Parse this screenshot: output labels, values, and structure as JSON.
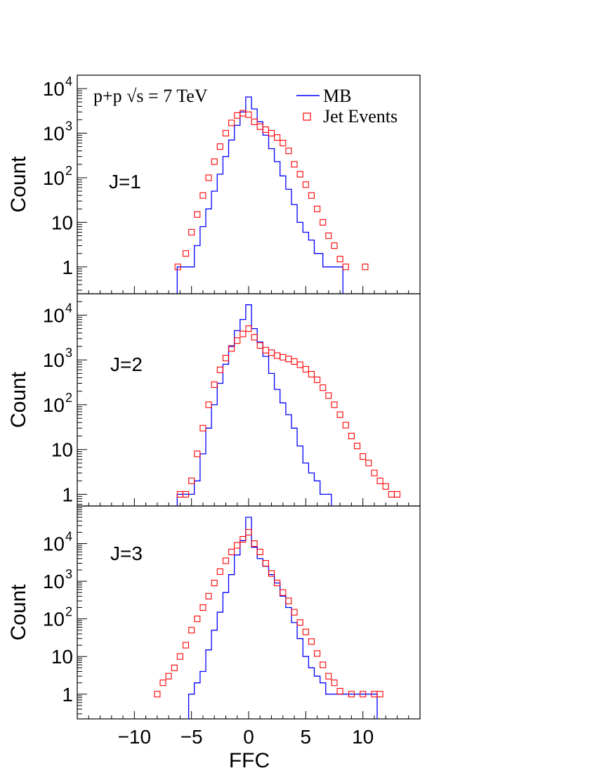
{
  "chart_data": {
    "type": "histogram",
    "title": "",
    "annotation": "p+p  √s = 7 TeV",
    "xlabel": "FFC",
    "ylabel": "Count",
    "x_ticks": [
      "−10",
      "−5",
      "0",
      "5",
      "10"
    ],
    "x_tick_values": [
      -10,
      -5,
      0,
      5,
      10
    ],
    "xlim": [
      -15,
      15
    ],
    "y_scale": "log",
    "grid": false,
    "legend": {
      "placement": "top-right",
      "entries": [
        {
          "label": "MB",
          "marker": "line",
          "color": "#0000ff"
        },
        {
          "label": "Jet Events",
          "marker": "open-square",
          "color": "#ff0000"
        }
      ]
    },
    "panels": [
      {
        "label": "J=1",
        "ylim": [
          0.25,
          20000
        ],
        "y_ticks": [
          {
            "value": 1,
            "base": "1",
            "sup": ""
          },
          {
            "value": 10,
            "base": "10",
            "sup": ""
          },
          {
            "value": 100,
            "base": "10",
            "sup": "2"
          },
          {
            "value": 1000,
            "base": "10",
            "sup": "3"
          },
          {
            "value": 10000,
            "base": "10",
            "sup": "4"
          }
        ],
        "mb": {
          "name": "MB",
          "x": [
            -6,
            -5,
            -4.5,
            -4,
            -3.5,
            -3,
            -2.5,
            -2,
            -1.5,
            -1,
            -0.5,
            0,
            0.5,
            1,
            1.5,
            2,
            2.5,
            3,
            3.5,
            4,
            4.5,
            5,
            5.5,
            6,
            7,
            8
          ],
          "y": [
            1,
            1,
            3,
            8,
            20,
            50,
            120,
            300,
            700,
            1500,
            3000,
            6500,
            3500,
            1800,
            900,
            450,
            230,
            110,
            55,
            25,
            10,
            6,
            4,
            2,
            1,
            1
          ]
        },
        "jet": {
          "name": "Jet Events",
          "x": [
            -6.2,
            -5.5,
            -5,
            -4.5,
            -4,
            -3.5,
            -3,
            -2.5,
            -2,
            -1.5,
            -1,
            -0.5,
            0,
            0.5,
            1,
            1.5,
            2,
            2.5,
            3,
            3.5,
            4,
            4.5,
            5,
            5.5,
            6,
            6.5,
            7,
            7.5,
            8,
            8.5,
            10.2
          ],
          "y": [
            1,
            2,
            6,
            15,
            40,
            100,
            230,
            500,
            1000,
            1700,
            2500,
            2800,
            2600,
            1800,
            1400,
            1200,
            1000,
            800,
            600,
            400,
            200,
            120,
            70,
            40,
            20,
            10,
            5,
            3,
            1.5,
            1,
            1
          ]
        }
      },
      {
        "label": "J=2",
        "ylim": [
          0.55,
          30000
        ],
        "y_ticks": [
          {
            "value": 1,
            "base": "1",
            "sup": ""
          },
          {
            "value": 10,
            "base": "10",
            "sup": ""
          },
          {
            "value": 100,
            "base": "10",
            "sup": "2"
          },
          {
            "value": 1000,
            "base": "10",
            "sup": "3"
          },
          {
            "value": 10000,
            "base": "10",
            "sup": "4"
          }
        ],
        "mb": {
          "name": "MB",
          "x": [
            -6,
            -5,
            -4.5,
            -4,
            -3.5,
            -3,
            -2.5,
            -2,
            -1.5,
            -1,
            -0.5,
            0,
            0.5,
            1,
            1.5,
            2,
            2.5,
            3,
            3.5,
            4,
            4.5,
            5,
            5.5,
            6,
            6.5,
            7
          ],
          "y": [
            1,
            1,
            2,
            8,
            30,
            100,
            300,
            800,
            2000,
            4500,
            8000,
            17000,
            5000,
            2500,
            1200,
            500,
            220,
            110,
            60,
            30,
            12,
            5,
            3,
            2,
            1,
            1
          ]
        },
        "jet": {
          "name": "Jet Events",
          "x": [
            -6,
            -5.5,
            -5,
            -4.5,
            -4,
            -3.5,
            -3,
            -2.5,
            -2,
            -1.5,
            -1,
            -0.5,
            0,
            0.5,
            1,
            1.5,
            2,
            2.5,
            3,
            3.5,
            4,
            4.5,
            5,
            5.5,
            6,
            6.5,
            7,
            7.5,
            8,
            8.5,
            9,
            9.5,
            10,
            10.5,
            11,
            11.5,
            12,
            12.5,
            13
          ],
          "y": [
            1,
            1,
            2,
            8,
            30,
            100,
            280,
            600,
            1100,
            1800,
            2700,
            3800,
            5000,
            3200,
            2100,
            1650,
            1450,
            1250,
            1150,
            1050,
            920,
            780,
            620,
            480,
            360,
            240,
            160,
            100,
            60,
            35,
            20,
            12,
            7,
            5,
            3,
            2,
            1.5,
            1,
            1
          ]
        }
      },
      {
        "label": "J=3",
        "ylim": [
          0.22,
          100000
        ],
        "y_ticks": [
          {
            "value": 1,
            "base": "1",
            "sup": ""
          },
          {
            "value": 10,
            "base": "10",
            "sup": ""
          },
          {
            "value": 100,
            "base": "10",
            "sup": "2"
          },
          {
            "value": 1000,
            "base": "10",
            "sup": "3"
          },
          {
            "value": 10000,
            "base": "10",
            "sup": "4"
          }
        ],
        "mb": {
          "name": "MB",
          "x": [
            -5,
            -4.5,
            -4,
            -3.5,
            -3,
            -2.5,
            -2,
            -1.5,
            -1,
            -0.5,
            0,
            0.5,
            1,
            1.5,
            2,
            2.5,
            3,
            3.5,
            4,
            4.5,
            5,
            5.5,
            6,
            6.5,
            7,
            7.5,
            8,
            9,
            11
          ],
          "y": [
            1,
            2,
            4,
            15,
            50,
            150,
            500,
            1500,
            5000,
            12000,
            50000,
            8000,
            4000,
            2500,
            1500,
            900,
            400,
            200,
            80,
            30,
            10,
            5,
            3,
            2,
            1,
            1,
            1,
            1,
            1
          ]
        },
        "jet": {
          "name": "Jet Events",
          "x": [
            -8,
            -7.5,
            -7,
            -6.5,
            -6,
            -5.5,
            -5,
            -4.5,
            -4,
            -3.5,
            -3,
            -2.5,
            -2,
            -1.5,
            -1,
            -0.5,
            0,
            0.5,
            1,
            1.5,
            2,
            2.5,
            3,
            3.5,
            4,
            4.5,
            5,
            5.5,
            6,
            6.5,
            7,
            7.5,
            8,
            9,
            10,
            11,
            11.5
          ],
          "y": [
            1,
            2,
            3,
            5,
            10,
            20,
            50,
            100,
            200,
            400,
            900,
            1800,
            3500,
            6000,
            9000,
            13000,
            20000,
            10000,
            6000,
            3000,
            1600,
            900,
            500,
            300,
            150,
            80,
            45,
            25,
            12,
            6,
            3,
            2,
            1.2,
            1,
            1,
            1,
            1
          ]
        }
      }
    ]
  }
}
